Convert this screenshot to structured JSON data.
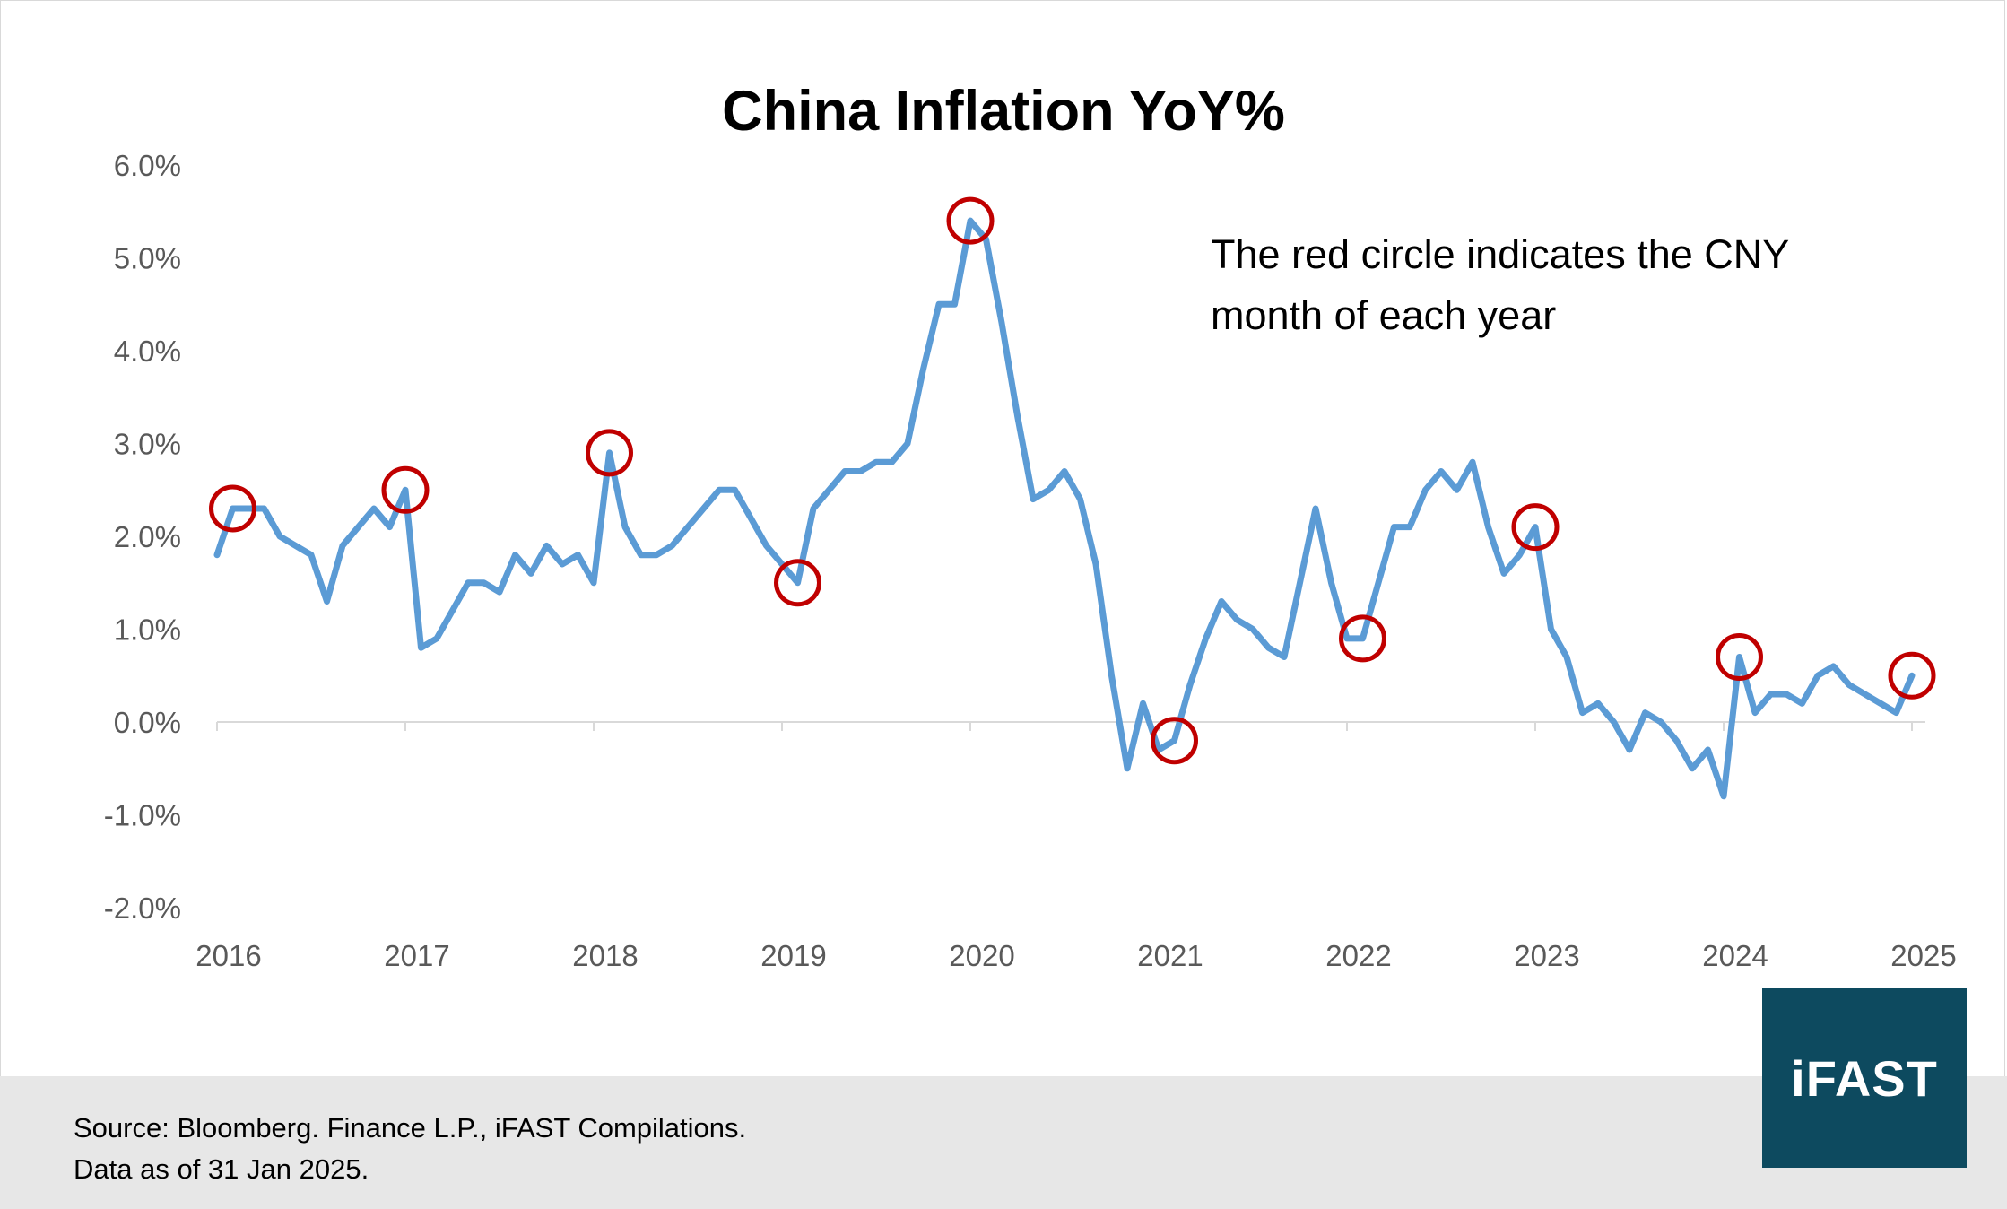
{
  "source_line": "Source: Bloomberg. Finance L.P., iFAST Compilations.",
  "date_line": "Data as of 31 Jan 2025.",
  "logo_text": "iFAST",
  "chart_data": {
    "type": "line",
    "title": "China Inflation YoY%",
    "annotation": "The red circle indicates the CNY month of each year",
    "xlabel": "",
    "ylabel": "",
    "ylim": [
      -2.0,
      6.0
    ],
    "y_ticks": [
      "-2.0%",
      "-1.0%",
      "0.0%",
      "1.0%",
      "2.0%",
      "3.0%",
      "4.0%",
      "5.0%",
      "6.0%"
    ],
    "y_tick_values": [
      -2,
      -1,
      0,
      1,
      2,
      3,
      4,
      5,
      6
    ],
    "x_ticks": [
      "2016",
      "2017",
      "2018",
      "2019",
      "2020",
      "2021",
      "2022",
      "2023",
      "2024",
      "2025"
    ],
    "x_tick_values": [
      2016,
      2017,
      2018,
      2019,
      2020,
      2021,
      2022,
      2023,
      2024,
      2025
    ],
    "grid": false,
    "line_color": "#5b9bd5",
    "highlight_color": "#c00000",
    "series": [
      {
        "start": "2016-01",
        "frequency": "monthly",
        "values": [
          1.8,
          2.3,
          2.3,
          2.3,
          2.0,
          1.9,
          1.8,
          1.3,
          1.9,
          2.1,
          2.3,
          2.1,
          2.5,
          0.8,
          0.9,
          1.2,
          1.5,
          1.5,
          1.4,
          1.8,
          1.6,
          1.9,
          1.7,
          1.8,
          1.5,
          2.9,
          2.1,
          1.8,
          1.8,
          1.9,
          2.1,
          2.3,
          2.5,
          2.5,
          2.2,
          1.9,
          1.7,
          1.5,
          2.3,
          2.5,
          2.7,
          2.7,
          2.8,
          2.8,
          3.0,
          3.8,
          4.5,
          4.5,
          5.4,
          5.2,
          4.3,
          3.3,
          2.4,
          2.5,
          2.7,
          2.4,
          1.7,
          0.5,
          -0.5,
          0.2,
          -0.3,
          -0.2,
          0.4,
          0.9,
          1.3,
          1.1,
          1.0,
          0.8,
          0.7,
          1.5,
          2.3,
          1.5,
          0.9,
          0.9,
          1.5,
          2.1,
          2.1,
          2.5,
          2.7,
          2.5,
          2.8,
          2.1,
          1.6,
          1.8,
          2.1,
          1.0,
          0.7,
          0.1,
          0.2,
          0.0,
          -0.3,
          0.1,
          0.0,
          -0.2,
          -0.5,
          -0.3,
          -0.8,
          0.7,
          0.1,
          0.3,
          0.3,
          0.2,
          0.5,
          0.6,
          0.4,
          0.3,
          0.2,
          0.1,
          0.5
        ]
      }
    ],
    "highlighted_months": [
      "2016-02",
      "2017-01",
      "2018-02",
      "2019-02",
      "2020-01",
      "2021-02",
      "2022-02",
      "2023-01",
      "2024-02",
      "2025-01"
    ]
  }
}
